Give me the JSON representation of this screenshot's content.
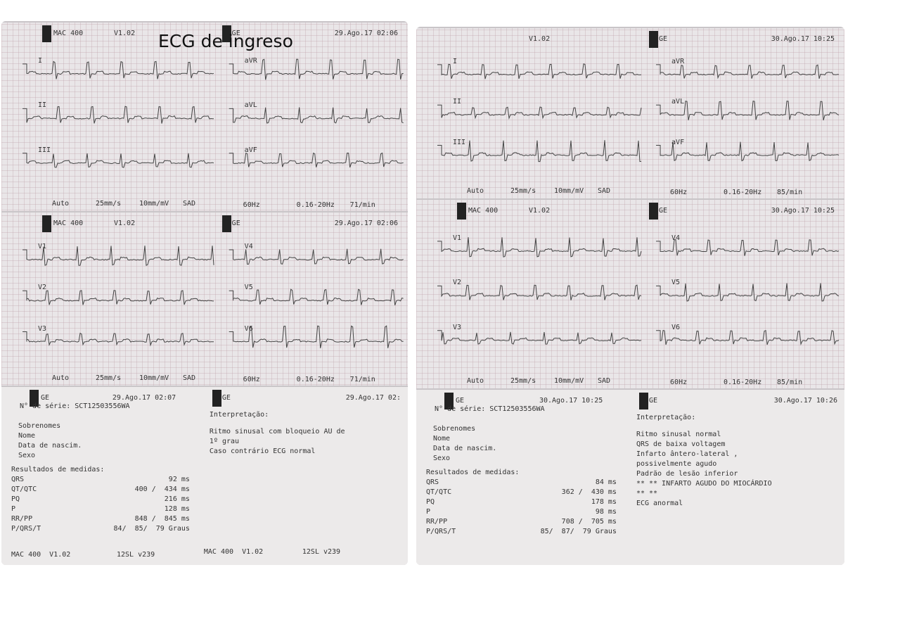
{
  "title": "ECG de ingreso",
  "panels": [
    {
      "ecg": [
        {
          "device": "MAC 400",
          "version": "V1.02",
          "brand": "GE",
          "datetime": "29.Ago.17 02:06",
          "leads_left": [
            "I",
            "II",
            "III"
          ],
          "leads_right": [
            "aVR",
            "aVL",
            "aVF"
          ],
          "footer_left": [
            "Auto",
            "25mm/s",
            "10mm/mV",
            "SAD"
          ],
          "footer_right": [
            "60Hz",
            "0.16-20Hz",
            "71/min"
          ]
        },
        {
          "device": "MAC 400",
          "version": "V1.02",
          "brand": "GE",
          "datetime": "29.Ago.17 02:06",
          "leads_left": [
            "V1",
            "V2",
            "V3"
          ],
          "leads_right": [
            "V4",
            "V5",
            "V6"
          ],
          "footer_left": [
            "Auto",
            "25mm/s",
            "10mm/mV",
            "SAD"
          ],
          "footer_right": [
            "60Hz",
            "0.16-20Hz",
            "71/min"
          ]
        }
      ],
      "report": {
        "left": {
          "brand": "GE",
          "datetime": "29.Ago.17 02:07",
          "serial": "N° de série: SCT12503556WA",
          "fields": [
            "Sobrenomes",
            "Nome",
            "Data de nascim.",
            "Sexo"
          ],
          "results_title": "Resultados de medidas:",
          "measures": [
            [
              "QRS",
              "92 ms"
            ],
            [
              "QT/QTC",
              "400 /  434 ms"
            ],
            [
              "PQ",
              "216 ms"
            ],
            [
              "P",
              "128 ms"
            ],
            [
              "RR/PP",
              "848 /  845 ms"
            ],
            [
              "P/QRS/T",
              "84/  85/  79 Graus"
            ]
          ],
          "footer": [
            "MAC 400  V1.02",
            "12SL v239"
          ]
        },
        "right": {
          "brand": "GE",
          "datetime": "29.Ago.17 02:",
          "heading": "Interpretação:",
          "lines": [
            "Ritmo sinusal com bloqueio AU de",
            "1º grau",
            "Caso contrário ECG normal"
          ],
          "footer": [
            "MAC 400  V1.02",
            "12SL v239"
          ]
        }
      }
    },
    {
      "ecg": [
        {
          "version": "V1.02",
          "brand": "GE",
          "datetime": "30.Ago.17 10:25",
          "leads_left": [
            "I",
            "II",
            "III"
          ],
          "leads_right": [
            "aVR",
            "aVL",
            "aVF"
          ],
          "footer_left": [
            "Auto",
            "25mm/s",
            "10mm/mV",
            "SAD"
          ],
          "footer_right": [
            "60Hz",
            "0.16-20Hz",
            "85/min"
          ]
        },
        {
          "device": "MAC 400",
          "version": "V1.02",
          "brand": "GE",
          "datetime": "30.Ago.17 10:25",
          "leads_left": [
            "V1",
            "V2",
            "V3"
          ],
          "leads_right": [
            "V4",
            "V5",
            "V6"
          ],
          "footer_left": [
            "Auto",
            "25mm/s",
            "10mm/mV",
            "SAD"
          ],
          "footer_right": [
            "60Hz",
            "0.16-20Hz",
            "85/min"
          ]
        }
      ],
      "report": {
        "left": {
          "brand": "GE",
          "datetime": "30.Ago.17 10:25",
          "serial": "N° de série: SCT12503556WA",
          "fields": [
            "Sobrenomes",
            "Nome",
            "Data de nascim.",
            "Sexo"
          ],
          "results_title": "Resultados de medidas:",
          "measures": [
            [
              "QRS",
              "84 ms"
            ],
            [
              "QT/QTC",
              "362 /  430 ms"
            ],
            [
              "PQ",
              "178 ms"
            ],
            [
              "P",
              "98 ms"
            ],
            [
              "RR/PP",
              "708 /  705 ms"
            ],
            [
              "P/QRS/T",
              "85/  87/  79 Graus"
            ]
          ]
        },
        "right": {
          "brand": "GE",
          "datetime": "30.Ago.17 10:26",
          "heading": "Interpretação:",
          "lines": [
            "Ritmo sinusal normal",
            "QRS de baixa voltagem",
            "Infarto ântero-lateral ,",
            "possivelmente agudo",
            "Padrão de lesão inferior",
            "** ** INFARTO AGUDO DO MIOCÁRDIO",
            "** **",
            "ECG anormal"
          ]
        }
      }
    }
  ]
}
